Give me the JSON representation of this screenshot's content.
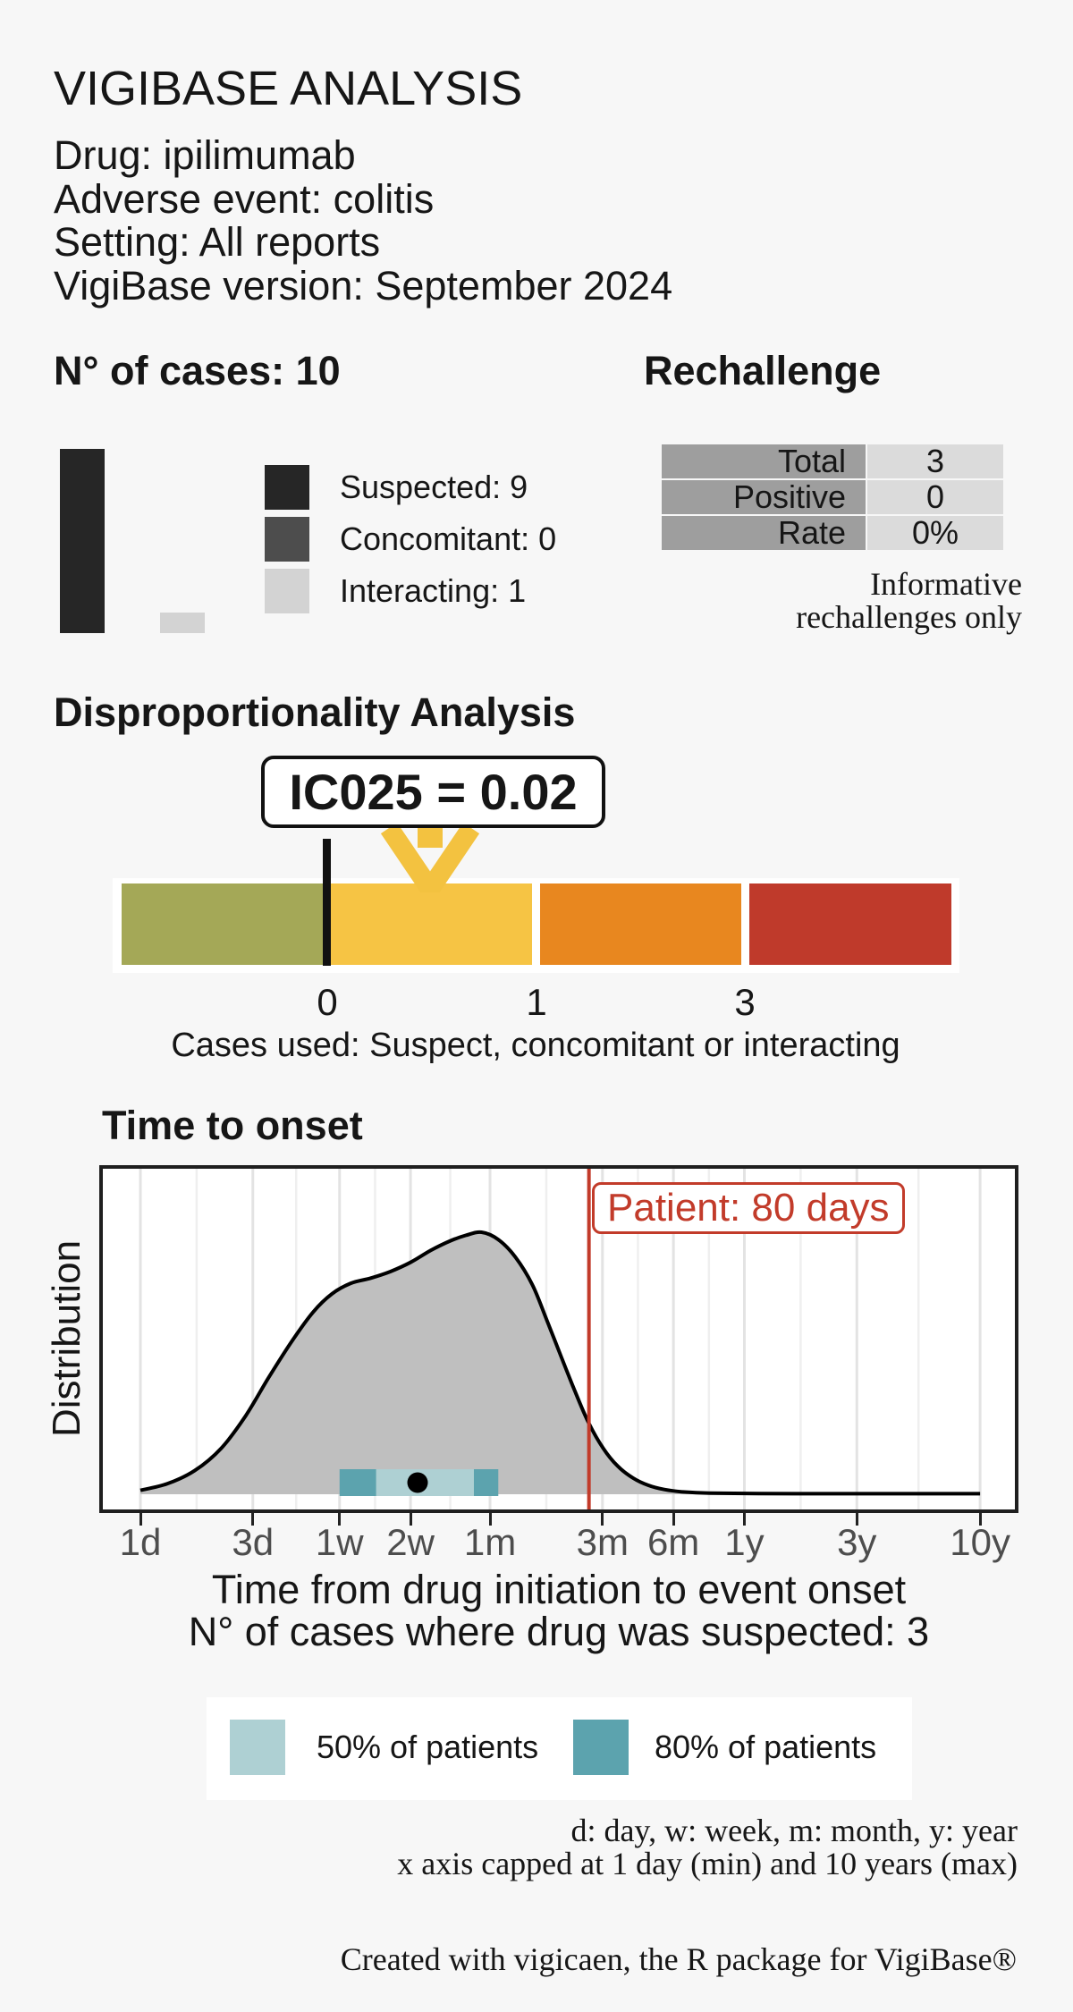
{
  "header": {
    "title": "VIGIBASE ANALYSIS",
    "lines": [
      "Drug: ipilimumab",
      "Adverse event: colitis",
      "Setting: All reports",
      "VigiBase version: September 2024"
    ]
  },
  "cases": {
    "heading": "N° of cases: 10",
    "legend": [
      {
        "label": "Suspected: 9",
        "value": 9
      },
      {
        "label": "Concomitant: 0",
        "value": 0
      },
      {
        "label": "Interacting: 1",
        "value": 1
      }
    ]
  },
  "rechallenge": {
    "heading": "Rechallenge",
    "rows": [
      {
        "label": "Total",
        "value": "3"
      },
      {
        "label": "Positive",
        "value": "0"
      },
      {
        "label": "Rate",
        "value": "0%"
      }
    ],
    "note": [
      "Informative",
      "rechallenges only"
    ]
  },
  "dispro": {
    "heading": "Disproportionality Analysis",
    "ic_label": "IC025 = 0.02",
    "ticks": [
      "0",
      "1",
      "3"
    ],
    "caption": "Cases used: Suspect, concomitant or interacting"
  },
  "tto": {
    "heading": "Time to onset",
    "ylab": "Distribution",
    "patient_label": "Patient: 80 days",
    "xlab": [
      "Time from drug initiation to event onset",
      "N° of cases where drug was suspected: 3"
    ],
    "legend": [
      {
        "label": "50% of patients"
      },
      {
        "label": "80% of patients"
      }
    ]
  },
  "footnotes": {
    "lines": [
      "d: day, w: week, m: month, y: year",
      "x axis capped at 1 day (min) and 10 years (max)"
    ],
    "credit": "Created with vigicaen, the R package for VigiBase®"
  },
  "colors": {
    "background": "#f7f7f7",
    "suspected": "#262626",
    "concomitant": "#4d4d4d",
    "interacting": "#d3d3d3",
    "table_label_bg": "#9e9e9e",
    "table_value_bg": "#dbdbdb",
    "scale_green": "#a4a857",
    "scale_yellow": "#f6c444",
    "scale_orange": "#e8871f",
    "scale_red": "#bf3a2b",
    "arrow_yellow": "#f3c240",
    "density_fill": "#bfbfbf",
    "teal_light": "#aed0d3",
    "teal_dark": "#5ca3ae",
    "patient_red": "#c23b2a",
    "tick_label_gray": "#4d4d4d"
  },
  "chart_data": [
    {
      "type": "bar",
      "title": "N° of cases: 10",
      "categories": [
        "Suspected",
        "Concomitant",
        "Interacting"
      ],
      "values": [
        9,
        0,
        1
      ],
      "colors": [
        "#262626",
        "#4d4d4d",
        "#d3d3d3"
      ],
      "ylim": [
        0,
        9
      ]
    },
    {
      "type": "table",
      "title": "Rechallenge",
      "rows": [
        [
          "Total",
          "3"
        ],
        [
          "Positive",
          "0"
        ],
        [
          "Rate",
          "0%"
        ]
      ],
      "note": "Informative rechallenges only"
    },
    {
      "type": "other",
      "subtype": "ic-scale",
      "ic025": 0.02,
      "axis_ticks": [
        0,
        1,
        3
      ],
      "segments": [
        {
          "range": "below 0",
          "color": "#a4a857"
        },
        {
          "range": "0 to 1",
          "color": "#f6c444"
        },
        {
          "range": "1 to 3",
          "color": "#e8871f"
        },
        {
          "range": "above 3",
          "color": "#bf3a2b"
        }
      ],
      "caption": "Cases used: Suspect, concomitant or interacting"
    },
    {
      "type": "area",
      "title": "Time to onset",
      "xlabel": "Time from drug initiation to event onset",
      "ylabel": "Distribution",
      "x_scale": "log10",
      "x_unit": "days",
      "x_range_days": [
        1,
        3652.5
      ],
      "x_ticks": [
        {
          "label": "1d",
          "days": 1
        },
        {
          "label": "3d",
          "days": 3
        },
        {
          "label": "1w",
          "days": 7
        },
        {
          "label": "2w",
          "days": 14
        },
        {
          "label": "1m",
          "days": 30.44
        },
        {
          "label": "3m",
          "days": 91.31
        },
        {
          "label": "6m",
          "days": 182.62
        },
        {
          "label": "1y",
          "days": 365.25
        },
        {
          "label": "3y",
          "days": 1095.75
        },
        {
          "label": "10y",
          "days": 3652.5
        }
      ],
      "density_points": [
        [
          1,
          0.015
        ],
        [
          1.3,
          0.04
        ],
        [
          1.7,
          0.09
        ],
        [
          2.2,
          0.175
        ],
        [
          2.8,
          0.3
        ],
        [
          3.5,
          0.445
        ],
        [
          4.4,
          0.585
        ],
        [
          5.4,
          0.695
        ],
        [
          6.5,
          0.765
        ],
        [
          7.8,
          0.805
        ],
        [
          9.5,
          0.825
        ],
        [
          11.5,
          0.85
        ],
        [
          14,
          0.885
        ],
        [
          17,
          0.93
        ],
        [
          20.5,
          0.966
        ],
        [
          24,
          0.988
        ],
        [
          28,
          1.0
        ],
        [
          33,
          0.972
        ],
        [
          39,
          0.905
        ],
        [
          46,
          0.8
        ],
        [
          53,
          0.665
        ],
        [
          61,
          0.525
        ],
        [
          70,
          0.39
        ],
        [
          80,
          0.27
        ],
        [
          92,
          0.175
        ],
        [
          106,
          0.107
        ],
        [
          123,
          0.062
        ],
        [
          143,
          0.034
        ],
        [
          167,
          0.018
        ],
        [
          200,
          0.009
        ],
        [
          260,
          0.004
        ],
        [
          420,
          0.0025
        ],
        [
          1000,
          0.002
        ],
        [
          3652,
          0.002
        ]
      ],
      "median_days": 15,
      "p50_days": [
        10,
        26
      ],
      "p80_days": [
        7,
        33
      ],
      "patient_days": 80,
      "n_suspected": 3
    }
  ]
}
